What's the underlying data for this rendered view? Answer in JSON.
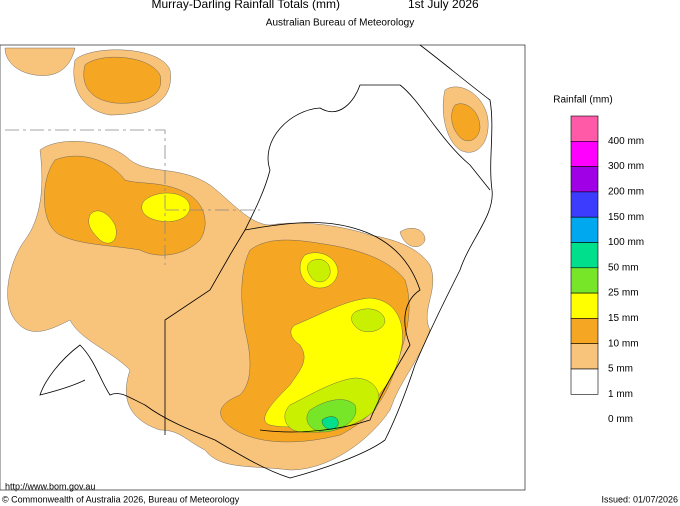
{
  "header": {
    "title": "Murray-Darling Rainfall Totals (mm)",
    "date": "1st July 2026",
    "subtitle": "Australian Bureau of Meteorology"
  },
  "legend": {
    "title": "Rainfall (mm)",
    "labels": [
      "400 mm",
      "300 mm",
      "200 mm",
      "150 mm",
      "100 mm",
      "50 mm",
      "25 mm",
      "15 mm",
      "10 mm",
      "5 mm",
      "1 mm",
      "0 mm"
    ],
    "colors": [
      "#ff5aa8",
      "#ff00ff",
      "#a000e6",
      "#3c3cff",
      "#00a8f0",
      "#00e08c",
      "#78e628",
      "#ffff00",
      "#f5a623",
      "#f8c37b",
      "#ffffff"
    ]
  },
  "footer": {
    "url": "http://www.bom.gov.au",
    "copyright": "© Commonwealth of Australia 2026, Bureau of Meteorology",
    "issued": "Issued: 01/07/2026"
  }
}
